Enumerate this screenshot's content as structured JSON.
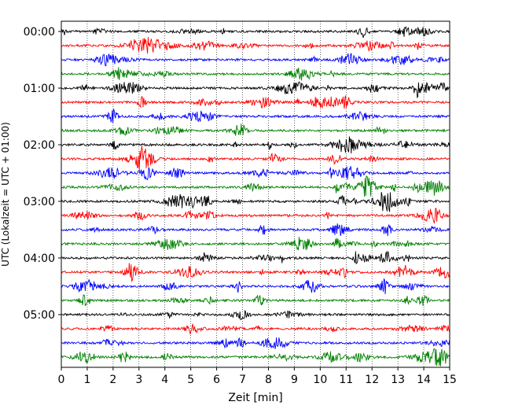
{
  "chart_data": {
    "type": "line",
    "title": "",
    "xlabel": "Zeit  [min]",
    "ylabel": "UTC (Lokalzeit = UTC + 01:00)",
    "xlim": [
      0,
      15
    ],
    "x_ticks": [
      0,
      1,
      2,
      3,
      4,
      5,
      6,
      7,
      8,
      9,
      10,
      11,
      12,
      13,
      14,
      15
    ],
    "y_tick_labels": [
      "00:00",
      "01:00",
      "02:00",
      "03:00",
      "04:00",
      "05:00"
    ],
    "trace_interval_min": 15,
    "trace_count": 24,
    "trace_color_cycle": [
      "#000000",
      "#ff0000",
      "#0000ff",
      "#008000"
    ],
    "grid": "vertical dotted"
  }
}
